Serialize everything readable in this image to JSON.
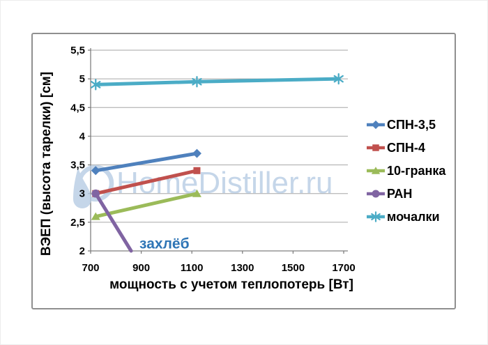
{
  "watermark": {
    "text": "HomeDistiller.ru",
    "color": "#B7CCE4"
  },
  "chart_data": {
    "type": "line",
    "title": "",
    "xlabel": "мощность  с учетом теплопотерь [Вт]",
    "ylabel": "ВЭЕП (высота тарелки)  [см]",
    "xlim": [
      700,
      1700
    ],
    "ylim": [
      2,
      5.5
    ],
    "x_ticks": [
      700,
      900,
      1100,
      1300,
      1500,
      1700
    ],
    "x_tick_labels": [
      "700",
      "900",
      "1100",
      "1300",
      "1500",
      "1700"
    ],
    "y_ticks": [
      5.5,
      5,
      4.5,
      4,
      3.5,
      3,
      2.5,
      2
    ],
    "y_tick_labels": [
      "5,5",
      "5",
      "4,5",
      "4",
      "3,5",
      "3",
      "2,5",
      "2"
    ],
    "grid": "horizontal-only",
    "grid_color": "#A6A6A6",
    "axis_color": "#7F7F7F",
    "legend_position": "right",
    "series": [
      {
        "name": "СПН-3,5",
        "color": "#4F81BD",
        "marker": "diamond",
        "points": [
          [
            720,
            3.4
          ],
          [
            1120,
            3.7
          ]
        ]
      },
      {
        "name": "СПН-4",
        "color": "#C0504D",
        "marker": "square",
        "points": [
          [
            720,
            3.0
          ],
          [
            1120,
            3.4
          ]
        ]
      },
      {
        "name": "10-гранка",
        "color": "#9BBB59",
        "marker": "triangle",
        "points": [
          [
            720,
            2.6
          ],
          [
            1120,
            3.0
          ]
        ]
      },
      {
        "name": "РАН",
        "color": "#8064A2",
        "marker": "circle",
        "points": [
          [
            720,
            3.0
          ],
          [
            860,
            2.0
          ]
        ],
        "hide_last_marker": true
      },
      {
        "name": "мочалки",
        "color": "#4BACC6",
        "marker": "asterisk",
        "points": [
          [
            720,
            4.9
          ],
          [
            1120,
            4.95
          ],
          [
            1680,
            5.0
          ]
        ]
      }
    ],
    "annotation": {
      "text": "захлёб",
      "color": "#2E75B6",
      "x": 893,
      "y": 2.04
    }
  }
}
